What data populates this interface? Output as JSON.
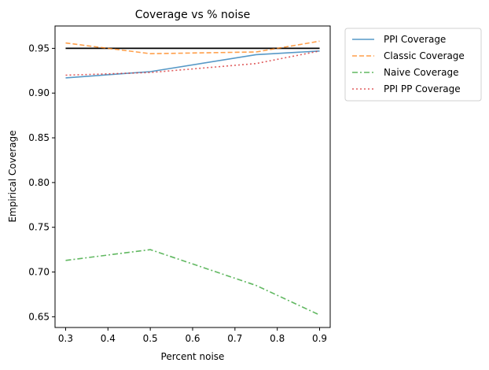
{
  "chart_data": {
    "type": "line",
    "title": "Coverage vs % noise",
    "xlabel": "Percent noise",
    "ylabel": "Empirical Coverage",
    "xlim": [
      0.275,
      0.925
    ],
    "ylim": [
      0.638,
      0.975
    ],
    "x_ticks": [
      "0.3",
      "0.4",
      "0.5",
      "0.6",
      "0.7",
      "0.8",
      "0.9"
    ],
    "y_ticks": [
      "0.65",
      "0.70",
      "0.75",
      "0.80",
      "0.85",
      "0.90",
      "0.95"
    ],
    "grid": false,
    "legend_placement": "outside-top-right",
    "x": [
      0.3,
      0.5,
      0.75,
      0.9
    ],
    "series": [
      {
        "name": "PPI Coverage",
        "values": [
          0.917,
          0.924,
          0.943,
          0.947
        ],
        "color": "#1f77b4",
        "dash": "solid"
      },
      {
        "name": "Classic Coverage",
        "values": [
          0.956,
          0.944,
          0.946,
          0.958
        ],
        "color": "#ff7f0e",
        "dash": "dashed"
      },
      {
        "name": "Naive Coverage",
        "values": [
          0.713,
          0.725,
          0.685,
          0.652
        ],
        "color": "#2ca02c",
        "dash": "dashdot"
      },
      {
        "name": "PPI PP Coverage",
        "values": [
          0.92,
          0.923,
          0.933,
          0.947
        ],
        "color": "#d62728",
        "dash": "dotted"
      }
    ],
    "reference_line": {
      "y": 0.95,
      "x_range": [
        0.3,
        0.9
      ],
      "color": "#000000"
    }
  }
}
